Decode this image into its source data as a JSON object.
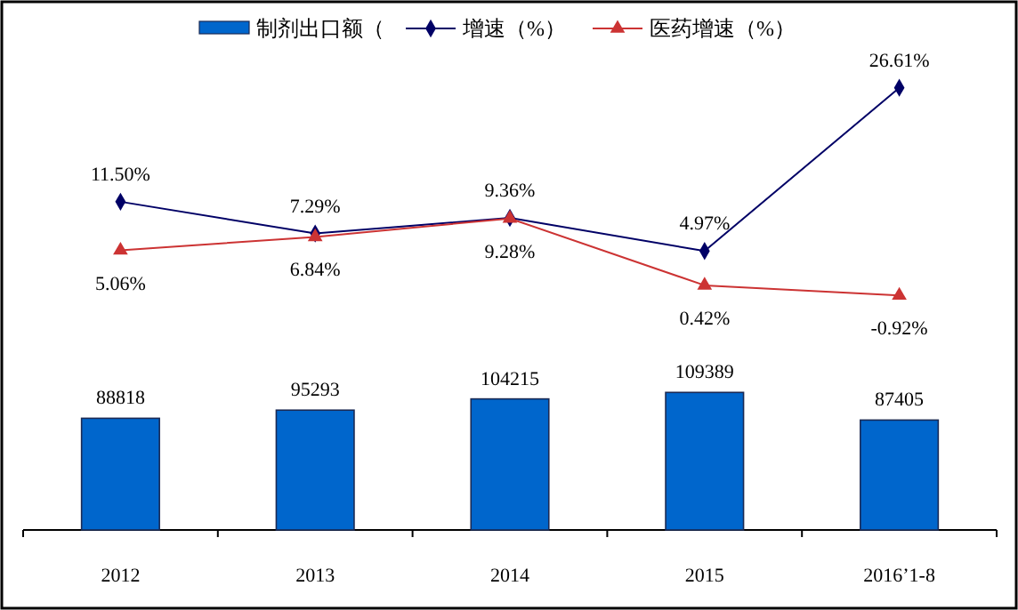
{
  "chart_data": {
    "type": "bar",
    "categories": [
      "2012",
      "2013",
      "2014",
      "2015",
      "2016’1-8"
    ],
    "series": [
      {
        "name": "制剂出口额（",
        "color": "#0066cc",
        "values": [
          88818,
          95293,
          104215,
          109389,
          87405
        ]
      },
      {
        "name": "增速（%）",
        "type": "line",
        "axis": "y2",
        "color": "#000066",
        "marker": "diamond",
        "values": [
          11.5,
          7.29,
          9.36,
          4.97,
          26.61
        ],
        "value_labels": [
          "11.50%",
          "7.29%",
          "9.36%",
          "4.97%",
          "26.61%"
        ]
      },
      {
        "name": "医药增速（%）",
        "type": "line",
        "axis": "y2",
        "color": "#cc3333",
        "marker": "triangle",
        "values": [
          5.06,
          6.84,
          9.28,
          0.42,
          -0.92
        ],
        "value_labels": [
          "5.06%",
          "6.84%",
          "9.28%",
          "0.42%",
          "-0.92%"
        ]
      }
    ],
    "ylim": [
      0,
      420000
    ],
    "y2lim": [
      -32,
      38
    ],
    "data_labels": true,
    "tick_labels": "x",
    "legend": "top"
  }
}
